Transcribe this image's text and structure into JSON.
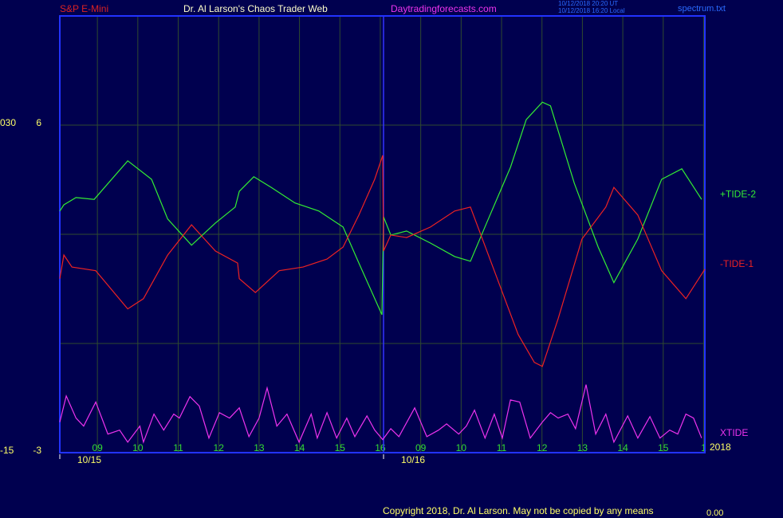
{
  "chart_data": {
    "type": "line",
    "header": {
      "left": "S&P E-Mini",
      "center": "Dr. Al Larson's Chaos Trader Web",
      "site": "Daytradingforecasts.com",
      "stamp_ut": "10/12/2018 20:20 UT",
      "stamp_local": "10/12/2018 16:20 Local",
      "file": "spectrum.txt"
    },
    "copyright": "Copyright 2018, Dr. Al Larson. May not be copied by any means",
    "footer_value": "0.00",
    "year_label": "2018",
    "xlim": [
      0.07,
      16.03
    ],
    "xticks": [
      {
        "value": 1,
        "label": "09"
      },
      {
        "value": 2,
        "label": "10"
      },
      {
        "value": 3,
        "label": "11"
      },
      {
        "value": 4,
        "label": "12"
      },
      {
        "value": 5,
        "label": "13"
      },
      {
        "value": 6,
        "label": "14"
      },
      {
        "value": 7,
        "label": "15"
      },
      {
        "value": 8,
        "label": "16"
      },
      {
        "value": 9,
        "label": "09"
      },
      {
        "value": 10,
        "label": "10"
      },
      {
        "value": 11,
        "label": "11"
      },
      {
        "value": 12,
        "label": "12"
      },
      {
        "value": 13,
        "label": "13"
      },
      {
        "value": 14,
        "label": "14"
      },
      {
        "value": 15,
        "label": "15"
      },
      {
        "value": 16,
        "label": "1"
      }
    ],
    "date_labels": [
      {
        "value": 0.07,
        "label": "10/15"
      },
      {
        "value": 8.08,
        "label": "10/16"
      }
    ],
    "ylim": [
      -3,
      9
    ],
    "yticks": [
      -3,
      6
    ],
    "gridlines": [
      0,
      3,
      6
    ],
    "y2lim": [
      -15,
      45
    ],
    "y2ticks": [
      -15,
      {
        "value": 30,
        "label": "030"
      }
    ],
    "series": [
      {
        "name": "+TIDE-2",
        "color": "#33ee33",
        "x": [
          0.07,
          0.17,
          0.47,
          0.92,
          1.75,
          2.34,
          2.74,
          3.33,
          3.92,
          4.41,
          4.51,
          4.87,
          5.3,
          5.89,
          6.48,
          7.08,
          7.47,
          8.04,
          8.08,
          8.26,
          8.65,
          9.24,
          9.84,
          10.23,
          10.63,
          11.22,
          11.61,
          12.01,
          12.21,
          12.8,
          13.39,
          13.78,
          14.37,
          14.96,
          15.46,
          15.95
        ],
        "values": [
          3.64,
          3.81,
          4.01,
          3.96,
          5.02,
          4.51,
          3.42,
          2.7,
          3.31,
          3.75,
          4.18,
          4.58,
          4.29,
          3.86,
          3.64,
          3.2,
          2.21,
          0.79,
          3.48,
          2.98,
          3.09,
          2.76,
          2.39,
          2.26,
          3.31,
          4.84,
          6.15,
          6.63,
          6.53,
          4.4,
          2.65,
          1.67,
          2.87,
          4.51,
          4.8,
          3.96
        ]
      },
      {
        "name": "-TIDE-1",
        "color": "#ee2222",
        "x": [
          0.07,
          0.17,
          0.37,
          0.96,
          1.75,
          2.14,
          2.74,
          3.33,
          3.92,
          4.47,
          4.51,
          4.91,
          5.5,
          6.09,
          6.68,
          7.08,
          7.47,
          7.86,
          8.06,
          8.08,
          8.26,
          8.65,
          9.24,
          9.84,
          10.23,
          10.82,
          11.41,
          11.81,
          12.01,
          12.4,
          12.99,
          13.58,
          13.78,
          14.37,
          14.96,
          15.56,
          16.03
        ],
        "values": [
          1.78,
          2.43,
          2.1,
          2.0,
          0.95,
          1.23,
          2.43,
          3.26,
          2.54,
          2.21,
          1.78,
          1.4,
          2.0,
          2.1,
          2.32,
          2.65,
          3.53,
          4.51,
          5.17,
          2.54,
          2.98,
          2.91,
          3.2,
          3.64,
          3.75,
          2.0,
          0.25,
          -0.52,
          -0.63,
          0.68,
          2.87,
          3.75,
          4.29,
          3.53,
          2.0,
          1.23,
          2.04
        ]
      },
      {
        "name": "XTIDE",
        "color": "#ee33ee",
        "x": [
          0.07,
          0.23,
          0.47,
          0.66,
          0.96,
          1.26,
          1.55,
          1.75,
          2.05,
          2.14,
          2.4,
          2.64,
          2.89,
          3.03,
          3.29,
          3.52,
          3.76,
          4.02,
          4.27,
          4.51,
          4.75,
          5.0,
          5.2,
          5.44,
          5.69,
          5.99,
          6.29,
          6.44,
          6.68,
          6.92,
          7.17,
          7.37,
          7.67,
          7.86,
          8.06,
          8.26,
          8.46,
          8.85,
          9.15,
          9.44,
          9.64,
          9.94,
          10.13,
          10.33,
          10.59,
          10.82,
          11.02,
          11.22,
          11.45,
          11.71,
          12.01,
          12.21,
          12.4,
          12.64,
          12.83,
          13.09,
          13.33,
          13.58,
          13.78,
          14.12,
          14.37,
          14.67,
          14.92,
          15.16,
          15.36,
          15.56,
          15.75,
          15.95
        ],
        "values": [
          -2.16,
          -1.44,
          -2.05,
          -2.27,
          -1.61,
          -2.49,
          -2.38,
          -2.71,
          -2.27,
          -2.71,
          -1.94,
          -2.38,
          -1.94,
          -2.05,
          -1.46,
          -1.72,
          -2.6,
          -1.9,
          -2.05,
          -1.77,
          -2.56,
          -2.05,
          -1.22,
          -2.27,
          -1.94,
          -2.71,
          -1.94,
          -2.6,
          -1.9,
          -2.6,
          -2.05,
          -2.56,
          -1.99,
          -2.38,
          -2.64,
          -2.34,
          -2.56,
          -1.77,
          -2.56,
          -2.38,
          -2.21,
          -2.49,
          -2.27,
          -1.83,
          -2.6,
          -1.94,
          -2.6,
          -1.55,
          -1.61,
          -2.6,
          -2.16,
          -1.9,
          -2.05,
          -1.94,
          -2.34,
          -1.13,
          -2.49,
          -1.94,
          -2.71,
          -1.99,
          -2.6,
          -2.01,
          -2.6,
          -2.38,
          -2.49,
          -1.94,
          -2.05,
          -2.6
        ]
      }
    ]
  }
}
